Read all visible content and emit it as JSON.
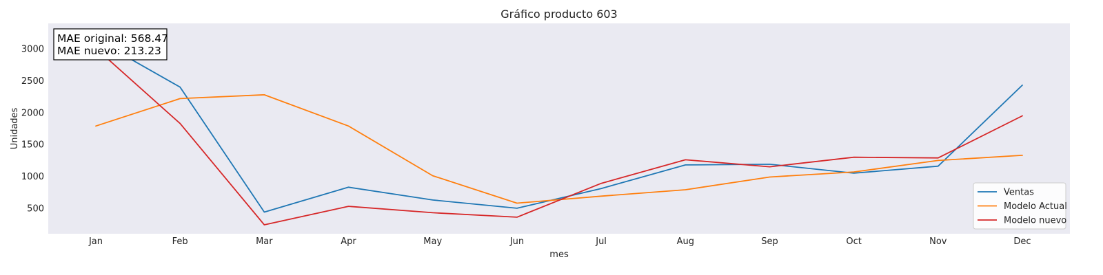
{
  "chart_data": {
    "type": "line",
    "title": "Gráfico producto 603",
    "xlabel": "mes",
    "ylabel": "Unidades",
    "categories": [
      "Jan",
      "Feb",
      "Mar",
      "Apr",
      "May",
      "Jun",
      "Jul",
      "Aug",
      "Sep",
      "Oct",
      "Nov",
      "Dec"
    ],
    "ylim": [
      100,
      3400
    ],
    "yticks": [
      500,
      1000,
      1500,
      2000,
      2500,
      3000
    ],
    "grid": false,
    "legend_position": "bottom-right",
    "background": "#eaeaf2",
    "series": [
      {
        "name": "Ventas",
        "color": "#1f77b4",
        "values": [
          3150,
          2400,
          440,
          830,
          630,
          500,
          810,
          1180,
          1190,
          1050,
          1160,
          2430
        ]
      },
      {
        "name": "Modelo Actual",
        "color": "#ff7f0e",
        "values": [
          1790,
          2220,
          2280,
          1790,
          1010,
          580,
          690,
          790,
          990,
          1070,
          1250,
          1330
        ]
      },
      {
        "name": "Modelo nuevo",
        "color": "#d62728",
        "values": [
          3010,
          1830,
          240,
          530,
          430,
          360,
          890,
          1260,
          1150,
          1300,
          1290,
          1950
        ]
      }
    ],
    "annotation": {
      "lines": [
        "MAE original: 568.47",
        "MAE nuevo: 213.23"
      ]
    }
  }
}
